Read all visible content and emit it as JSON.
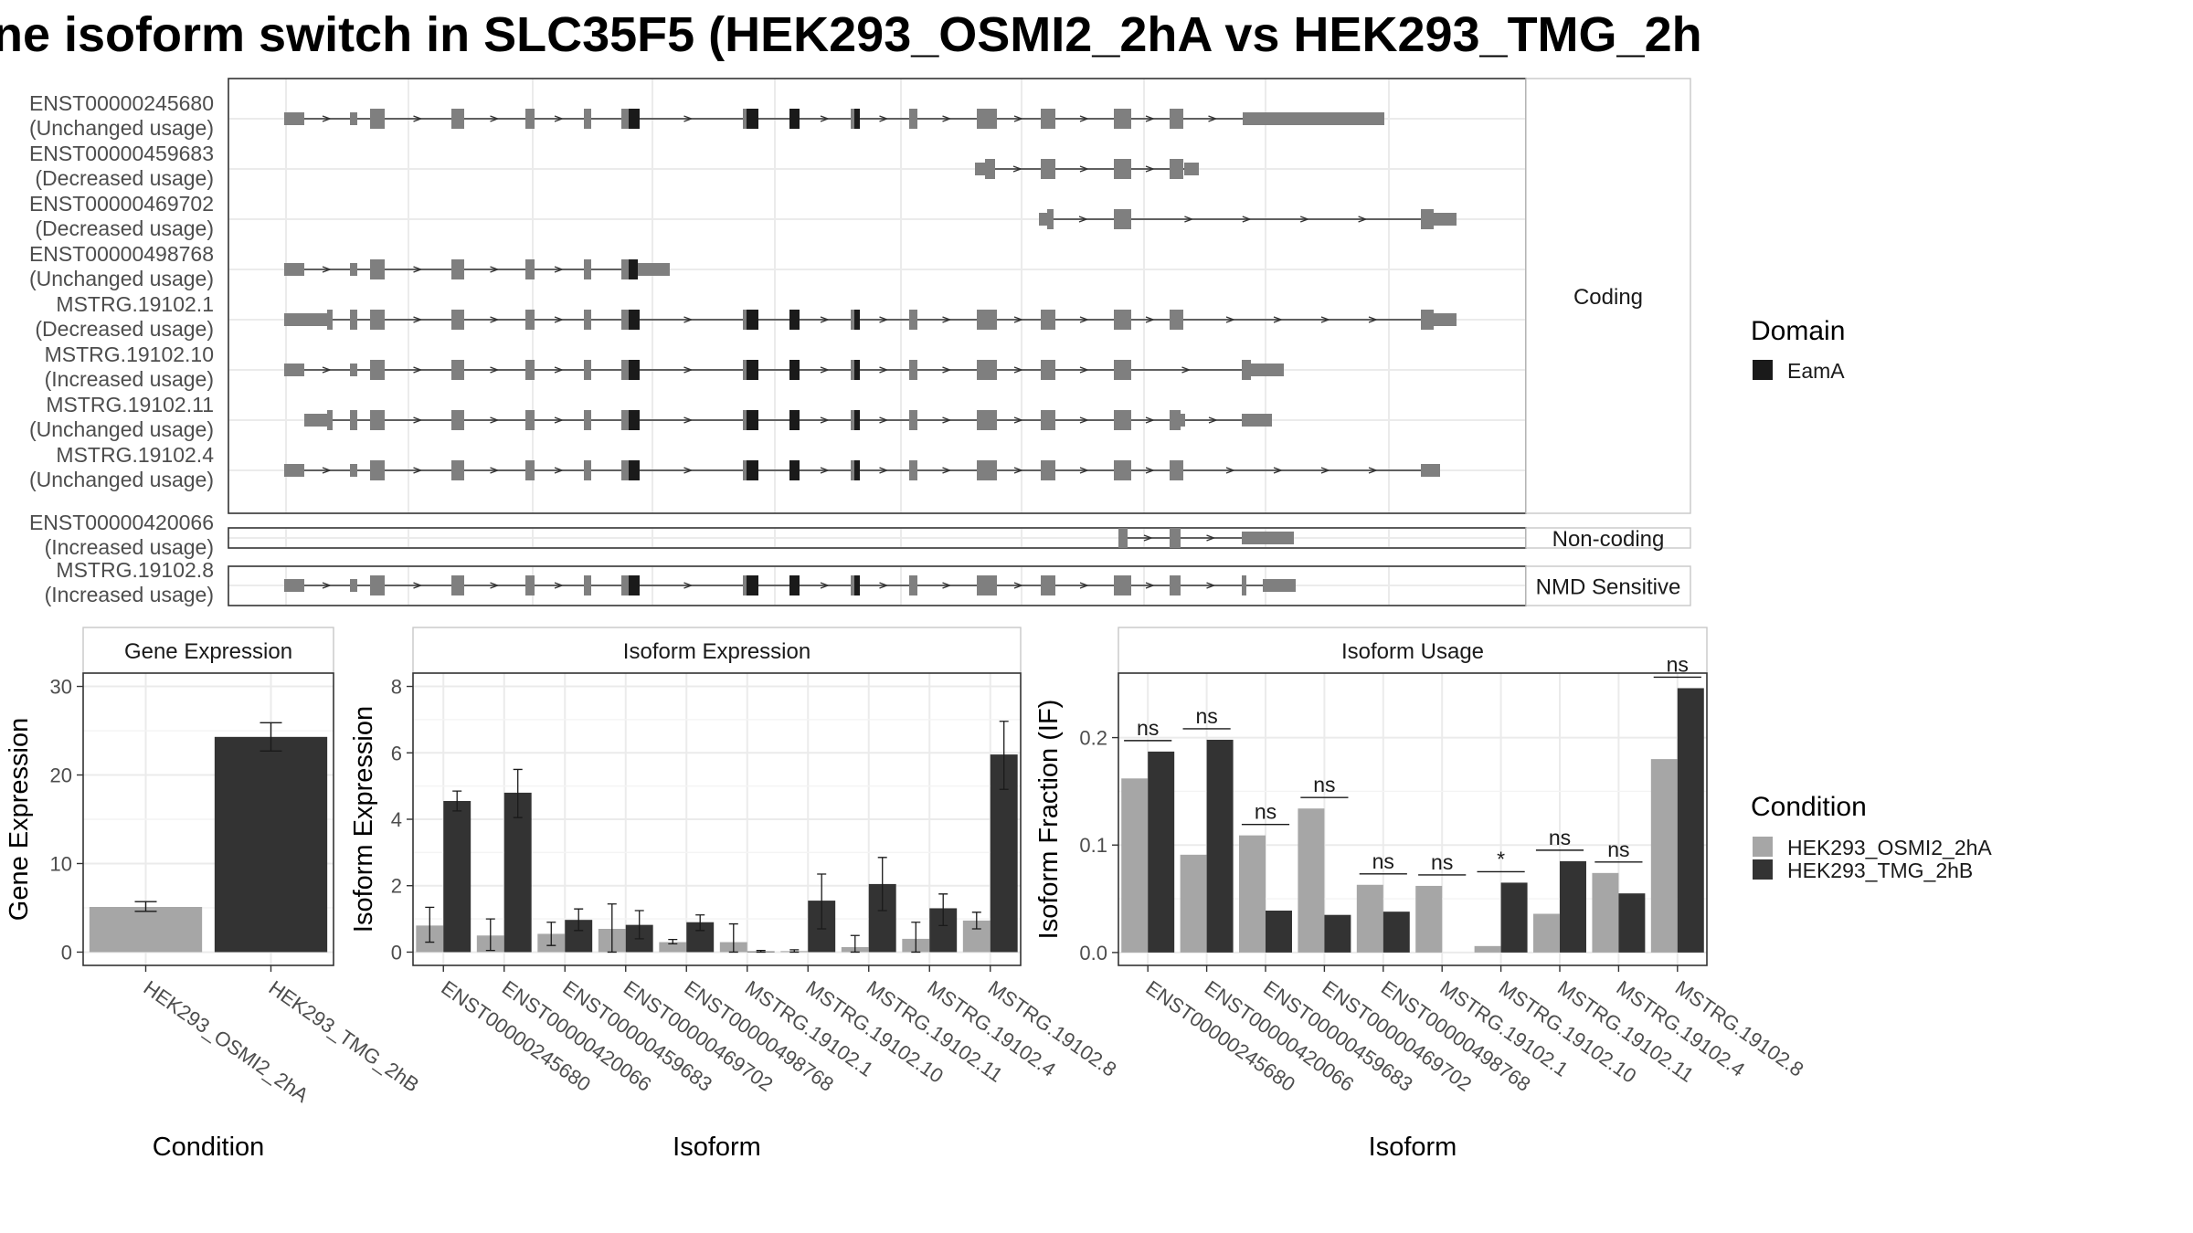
{
  "title": "ne isoform switch in SLC35F5 (HEK293_OSMI2_2hA vs HEK293_TMG_2h",
  "chart_data": [
    {
      "type": "gene-structure",
      "panels": [
        {
          "label": "Coding",
          "transcripts": [
            {
              "id": "ENST00000245680",
              "usage": "(Unchanged usage)"
            },
            {
              "id": "ENST00000459683",
              "usage": "(Decreased usage)"
            },
            {
              "id": "ENST00000469702",
              "usage": "(Decreased usage)"
            },
            {
              "id": "ENST00000498768",
              "usage": "(Unchanged usage)"
            },
            {
              "id": "MSTRG.19102.1",
              "usage": "(Decreased usage)"
            },
            {
              "id": "MSTRG.19102.10",
              "usage": "(Increased usage)"
            },
            {
              "id": "MSTRG.19102.11",
              "usage": "(Unchanged usage)"
            },
            {
              "id": "MSTRG.19102.4",
              "usage": "(Unchanged usage)"
            }
          ]
        },
        {
          "label": "Non-coding",
          "transcripts": [
            {
              "id": "ENST00000420066",
              "usage": "(Increased usage)"
            }
          ]
        },
        {
          "label": "NMD Sensitive",
          "transcripts": [
            {
              "id": "MSTRG.19102.8",
              "usage": "(Increased usage)"
            }
          ]
        }
      ],
      "legend": {
        "title": "Domain",
        "items": [
          {
            "name": "EamA",
            "color": "#1a1a1a"
          }
        ]
      },
      "exon_color": "#7f7f7f",
      "domain_color": "#1a1a1a"
    },
    {
      "type": "bar",
      "panel_title": "Gene Expression",
      "xlabel": "Condition",
      "ylabel": "Gene Expression",
      "categories": [
        "HEK293_OSMI2_2hA",
        "HEK293_TMG_2hB"
      ],
      "values": [
        5.1,
        24.3
      ],
      "errors": [
        [
          4.6,
          5.7
        ],
        [
          22.7,
          25.9
        ]
      ],
      "ylim": [
        -1.5,
        31.5
      ],
      "yticks": [
        0,
        10,
        20,
        30
      ],
      "colors": [
        "#a6a6a6",
        "#333333"
      ]
    },
    {
      "type": "bar",
      "panel_title": "Isoform Expression",
      "xlabel": "Isoform",
      "ylabel": "Isoform Expression",
      "categories": [
        "ENST00000245680",
        "ENST00000420066",
        "ENST00000459683",
        "ENST00000469702",
        "ENST00000498768",
        "MSTRG.19102.1",
        "MSTRG.19102.10",
        "MSTRG.19102.11",
        "MSTRG.19102.4",
        "MSTRG.19102.8"
      ],
      "series": [
        {
          "name": "HEK293_OSMI2_2hA",
          "values": [
            0.8,
            0.5,
            0.55,
            0.7,
            0.3,
            0.3,
            0.03,
            0.15,
            0.4,
            0.95
          ],
          "errors": [
            [
              0.3,
              1.35
            ],
            [
              0.05,
              1.0
            ],
            [
              0.2,
              0.9
            ],
            [
              0.0,
              1.45
            ],
            [
              0.25,
              0.38
            ],
            [
              0.0,
              0.85
            ],
            [
              0.0,
              0.07
            ],
            [
              0.0,
              0.5
            ],
            [
              0.0,
              0.9
            ],
            [
              0.7,
              1.2
            ]
          ]
        },
        {
          "name": "HEK293_TMG_2hB",
          "values": [
            4.55,
            4.8,
            0.97,
            0.82,
            0.9,
            0.02,
            1.55,
            2.05,
            1.32,
            5.95
          ],
          "errors": [
            [
              4.25,
              4.85
            ],
            [
              4.05,
              5.5
            ],
            [
              0.65,
              1.3
            ],
            [
              0.4,
              1.25
            ],
            [
              0.65,
              1.12
            ],
            [
              0.0,
              0.05
            ],
            [
              0.7,
              2.35
            ],
            [
              1.25,
              2.85
            ],
            [
              0.8,
              1.75
            ],
            [
              4.9,
              6.95
            ]
          ]
        }
      ],
      "ylim": [
        -0.4,
        8.4
      ],
      "yticks": [
        0,
        2,
        4,
        6,
        8
      ]
    },
    {
      "type": "bar",
      "panel_title": "Isoform Usage",
      "xlabel": "Isoform",
      "ylabel": "Isoform Fraction (IF)",
      "categories": [
        "ENST00000245680",
        "ENST00000420066",
        "ENST00000459683",
        "ENST00000469702",
        "ENST00000498768",
        "MSTRG.19102.1",
        "MSTRG.19102.10",
        "MSTRG.19102.11",
        "MSTRG.19102.4",
        "MSTRG.19102.8"
      ],
      "series": [
        {
          "name": "HEK293_OSMI2_2hA",
          "values": [
            0.162,
            0.091,
            0.109,
            0.134,
            0.063,
            0.062,
            0.006,
            0.036,
            0.074,
            0.18
          ]
        },
        {
          "name": "HEK293_TMG_2hB",
          "values": [
            0.187,
            0.198,
            0.039,
            0.035,
            0.038,
            0.0,
            0.065,
            0.085,
            0.055,
            0.246
          ]
        }
      ],
      "significance": [
        "ns",
        "ns",
        "ns",
        "ns",
        "ns",
        "ns",
        "*",
        "ns",
        "ns",
        "ns"
      ],
      "ylim": [
        -0.012,
        0.26
      ],
      "yticks": [
        0.0,
        0.1,
        0.2
      ],
      "ytick_labels": [
        "0.0",
        "0.1",
        "0.2"
      ]
    }
  ],
  "legend": {
    "title": "Condition",
    "items": [
      {
        "name": "HEK293_OSMI2_2hA",
        "color": "#a6a6a6"
      },
      {
        "name": "HEK293_TMG_2hB",
        "color": "#333333"
      }
    ]
  }
}
